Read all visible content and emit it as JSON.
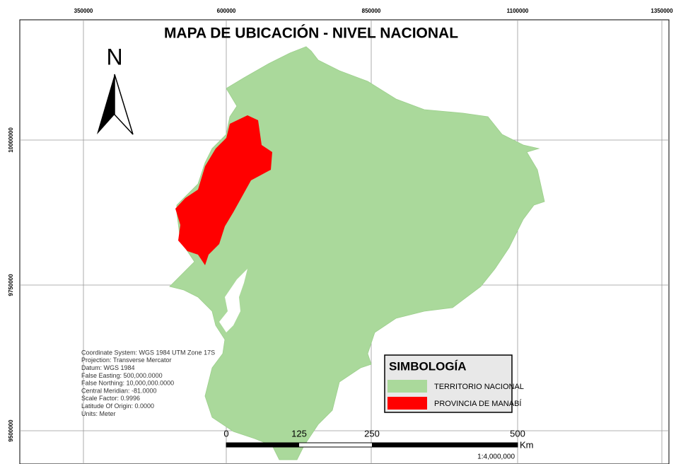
{
  "title": "MAPA DE UBICACIÓN - NIVEL NACIONAL",
  "north_arrow": "N",
  "grid": {
    "eastings": [
      "350000",
      "600000",
      "850000",
      "1100000",
      "1350000"
    ],
    "northings": [
      "10000000",
      "9750000",
      "9500000"
    ]
  },
  "coordinate_info": [
    "Coordinate System: WGS 1984 UTM Zone 17S",
    "Projection: Transverse Mercator",
    "Datum: WGS 1984",
    "False Easting: 500,000.0000",
    "False Northing: 10,000,000.0000",
    "Central Meridian: -81.0000",
    "Scale Factor: 0.9996",
    "Latitude Of Origin: 0.0000",
    "Units: Meter"
  ],
  "legend": {
    "title": "SIMBOLOGÍA",
    "items": [
      {
        "label": "TERRITORIO NACIONAL",
        "color": "#aad99b"
      },
      {
        "label": "PROVINCIA DE MANABÍ",
        "color": "#ff0000"
      }
    ]
  },
  "scale_bar": {
    "labels": [
      "0",
      "125",
      "250",
      "500"
    ],
    "unit": "Km",
    "ratio": "1:4,000,000"
  }
}
